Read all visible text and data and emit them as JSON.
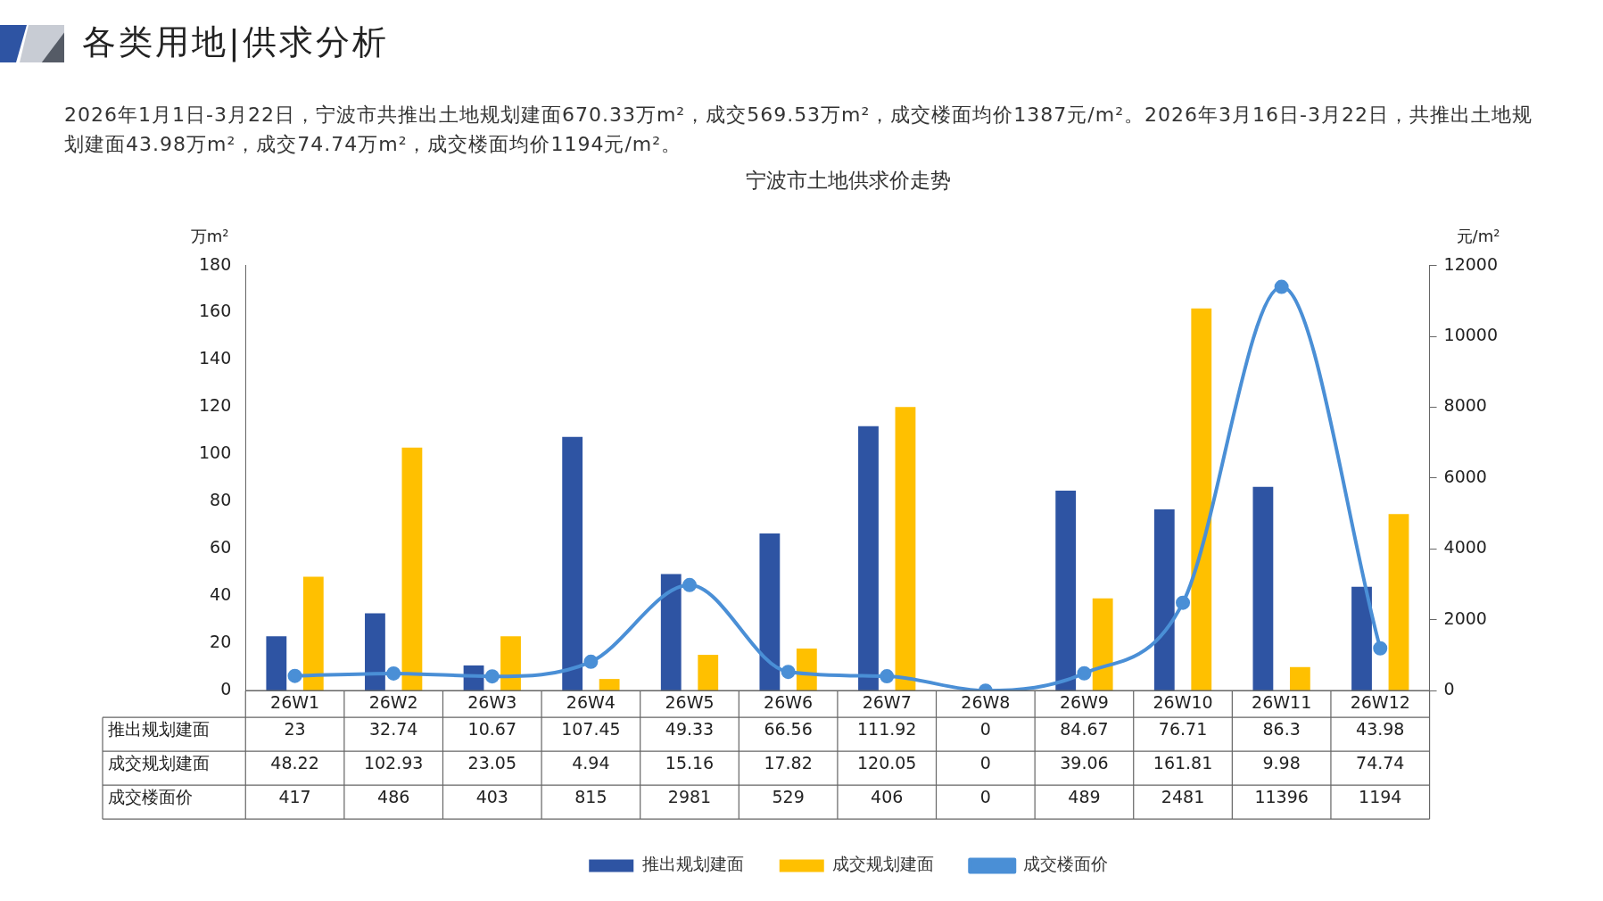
{
  "chart_data": {
    "type": "bar",
    "title": "宁波市土地供求价走势",
    "annotations": [
      "各类用地|供求分析",
      "2026年1月1日-3月22日，宁波市共推出土地规划建面670.33万m²，成交569.53万m²，成交楼面均价1387元/m²。2026年3月16日-3月22日，共推出土地规划建面43.98万m²，成交74.74万m²，成交楼面均价1194元/m²。"
    ],
    "ylabel": "万m²",
    "y2label": "元/m²",
    "categories": [
      "26W1",
      "26W2",
      "26W3",
      "26W4",
      "26W5",
      "26W6",
      "26W7",
      "26W8",
      "26W9",
      "26W10",
      "26W11",
      "26W12"
    ],
    "series": [
      {
        "name": "推出规划建面",
        "type": "bar",
        "color": "#2e54a3",
        "values": [
          23,
          32.74,
          10.67,
          107.45,
          49.33,
          66.56,
          111.92,
          0,
          84.67,
          76.71,
          86.3,
          43.98
        ]
      },
      {
        "name": "成交规划建面",
        "type": "bar",
        "color": "#ffc000",
        "values": [
          48.22,
          102.93,
          23.05,
          4.94,
          15.16,
          17.82,
          120.05,
          0,
          39.06,
          161.81,
          9.98,
          74.74
        ]
      },
      {
        "name": "成交楼面价",
        "type": "line",
        "axis": "y2",
        "color": "#4a8fd6",
        "values": [
          417,
          486,
          403,
          815,
          2981,
          529,
          406,
          0,
          489,
          2481,
          11396,
          1194
        ]
      }
    ],
    "ylim": [
      0,
      180
    ],
    "yticks": [
      0,
      20,
      40,
      60,
      80,
      100,
      120,
      140,
      160,
      180
    ],
    "y2lim": [
      0,
      12000
    ],
    "y2ticks": [
      0,
      2000,
      4000,
      6000,
      8000,
      10000,
      12000
    ],
    "data_labels": true,
    "grid": false,
    "legend": "bottom",
    "marker": "circle",
    "line_style": "solid"
  }
}
